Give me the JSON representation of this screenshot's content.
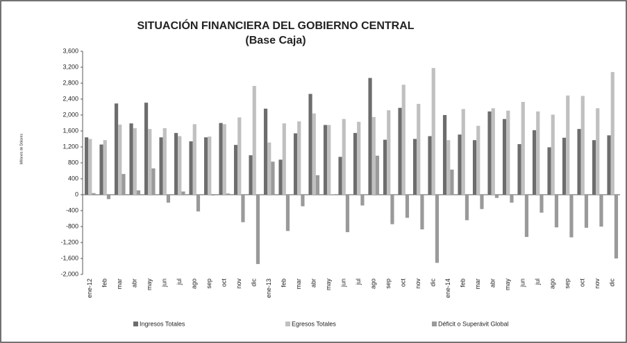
{
  "chart_data": {
    "type": "bar",
    "title": "SITUACIÓN FINANCIERA DEL GOBIERNO CENTRAL",
    "subtitle": "(Base Caja)",
    "y_label": "Millones de Dólares",
    "categories": [
      "ene-12",
      "feb",
      "mar",
      "abr",
      "may",
      "jun",
      "jul",
      "ago",
      "sep",
      "oct",
      "nov",
      "dic",
      "ene-13",
      "feb",
      "mar",
      "abr",
      "may",
      "jun",
      "jul",
      "ago",
      "sep",
      "oct",
      "nov",
      "dic",
      "ene-14",
      "feb",
      "mar",
      "abr",
      "may",
      "jun",
      "jul",
      "ago",
      "sep",
      "oct",
      "nov",
      "dic"
    ],
    "series": [
      {
        "name": "Ingresos Totales",
        "color": "#6d6d6d",
        "values": [
          1440,
          1260,
          2290,
          1790,
          2310,
          1440,
          1550,
          1340,
          1440,
          1800,
          1250,
          990,
          2160,
          880,
          1540,
          2530,
          1750,
          950,
          1550,
          2930,
          1380,
          2180,
          1400,
          1470,
          2000,
          1510,
          1370,
          2090,
          1900,
          1270,
          1620,
          1190,
          1430,
          1650,
          1370,
          1490
        ]
      },
      {
        "name": "Egresos Totales",
        "color": "#c0c0c0",
        "values": [
          1400,
          1370,
          1760,
          1670,
          1650,
          1670,
          1470,
          1770,
          1460,
          1770,
          1940,
          2730,
          1310,
          1790,
          1840,
          2040,
          1750,
          1900,
          1830,
          1950,
          2120,
          2760,
          2280,
          3180,
          1370,
          2150,
          1730,
          2170,
          2110,
          2330,
          2090,
          2010,
          2490,
          2480,
          2170,
          3080
        ]
      },
      {
        "name": "Déficit o Superávit Global",
        "color": "#9a9a9a",
        "values": [
          40,
          -110,
          520,
          110,
          660,
          -200,
          80,
          -420,
          -20,
          30,
          -690,
          -1740,
          830,
          -910,
          -290,
          490,
          10,
          -940,
          -270,
          980,
          -740,
          -580,
          -870,
          -1710,
          630,
          -640,
          -360,
          -80,
          -200,
          -1060,
          -450,
          -820,
          -1070,
          -830,
          -800,
          -1600
        ]
      }
    ],
    "ylim": [
      -2000,
      3600
    ],
    "yticks": [
      {
        "value": -2000,
        "label": "-2,000"
      },
      {
        "value": -1600,
        "label": "-1,600"
      },
      {
        "value": -1200,
        "label": "-1,200"
      },
      -800,
      -400,
      0,
      400,
      800,
      {
        "value": 1200,
        "label": "1,200"
      },
      {
        "value": 1600,
        "label": "1,600"
      },
      {
        "value": 2000,
        "label": "2,000"
      },
      {
        "value": 2400,
        "label": "2,400"
      },
      {
        "value": 2800,
        "label": "2,800"
      },
      {
        "value": 3200,
        "label": "3,200"
      },
      {
        "value": 3600,
        "label": "3,600"
      }
    ],
    "grid": false,
    "legend": "bottom"
  }
}
